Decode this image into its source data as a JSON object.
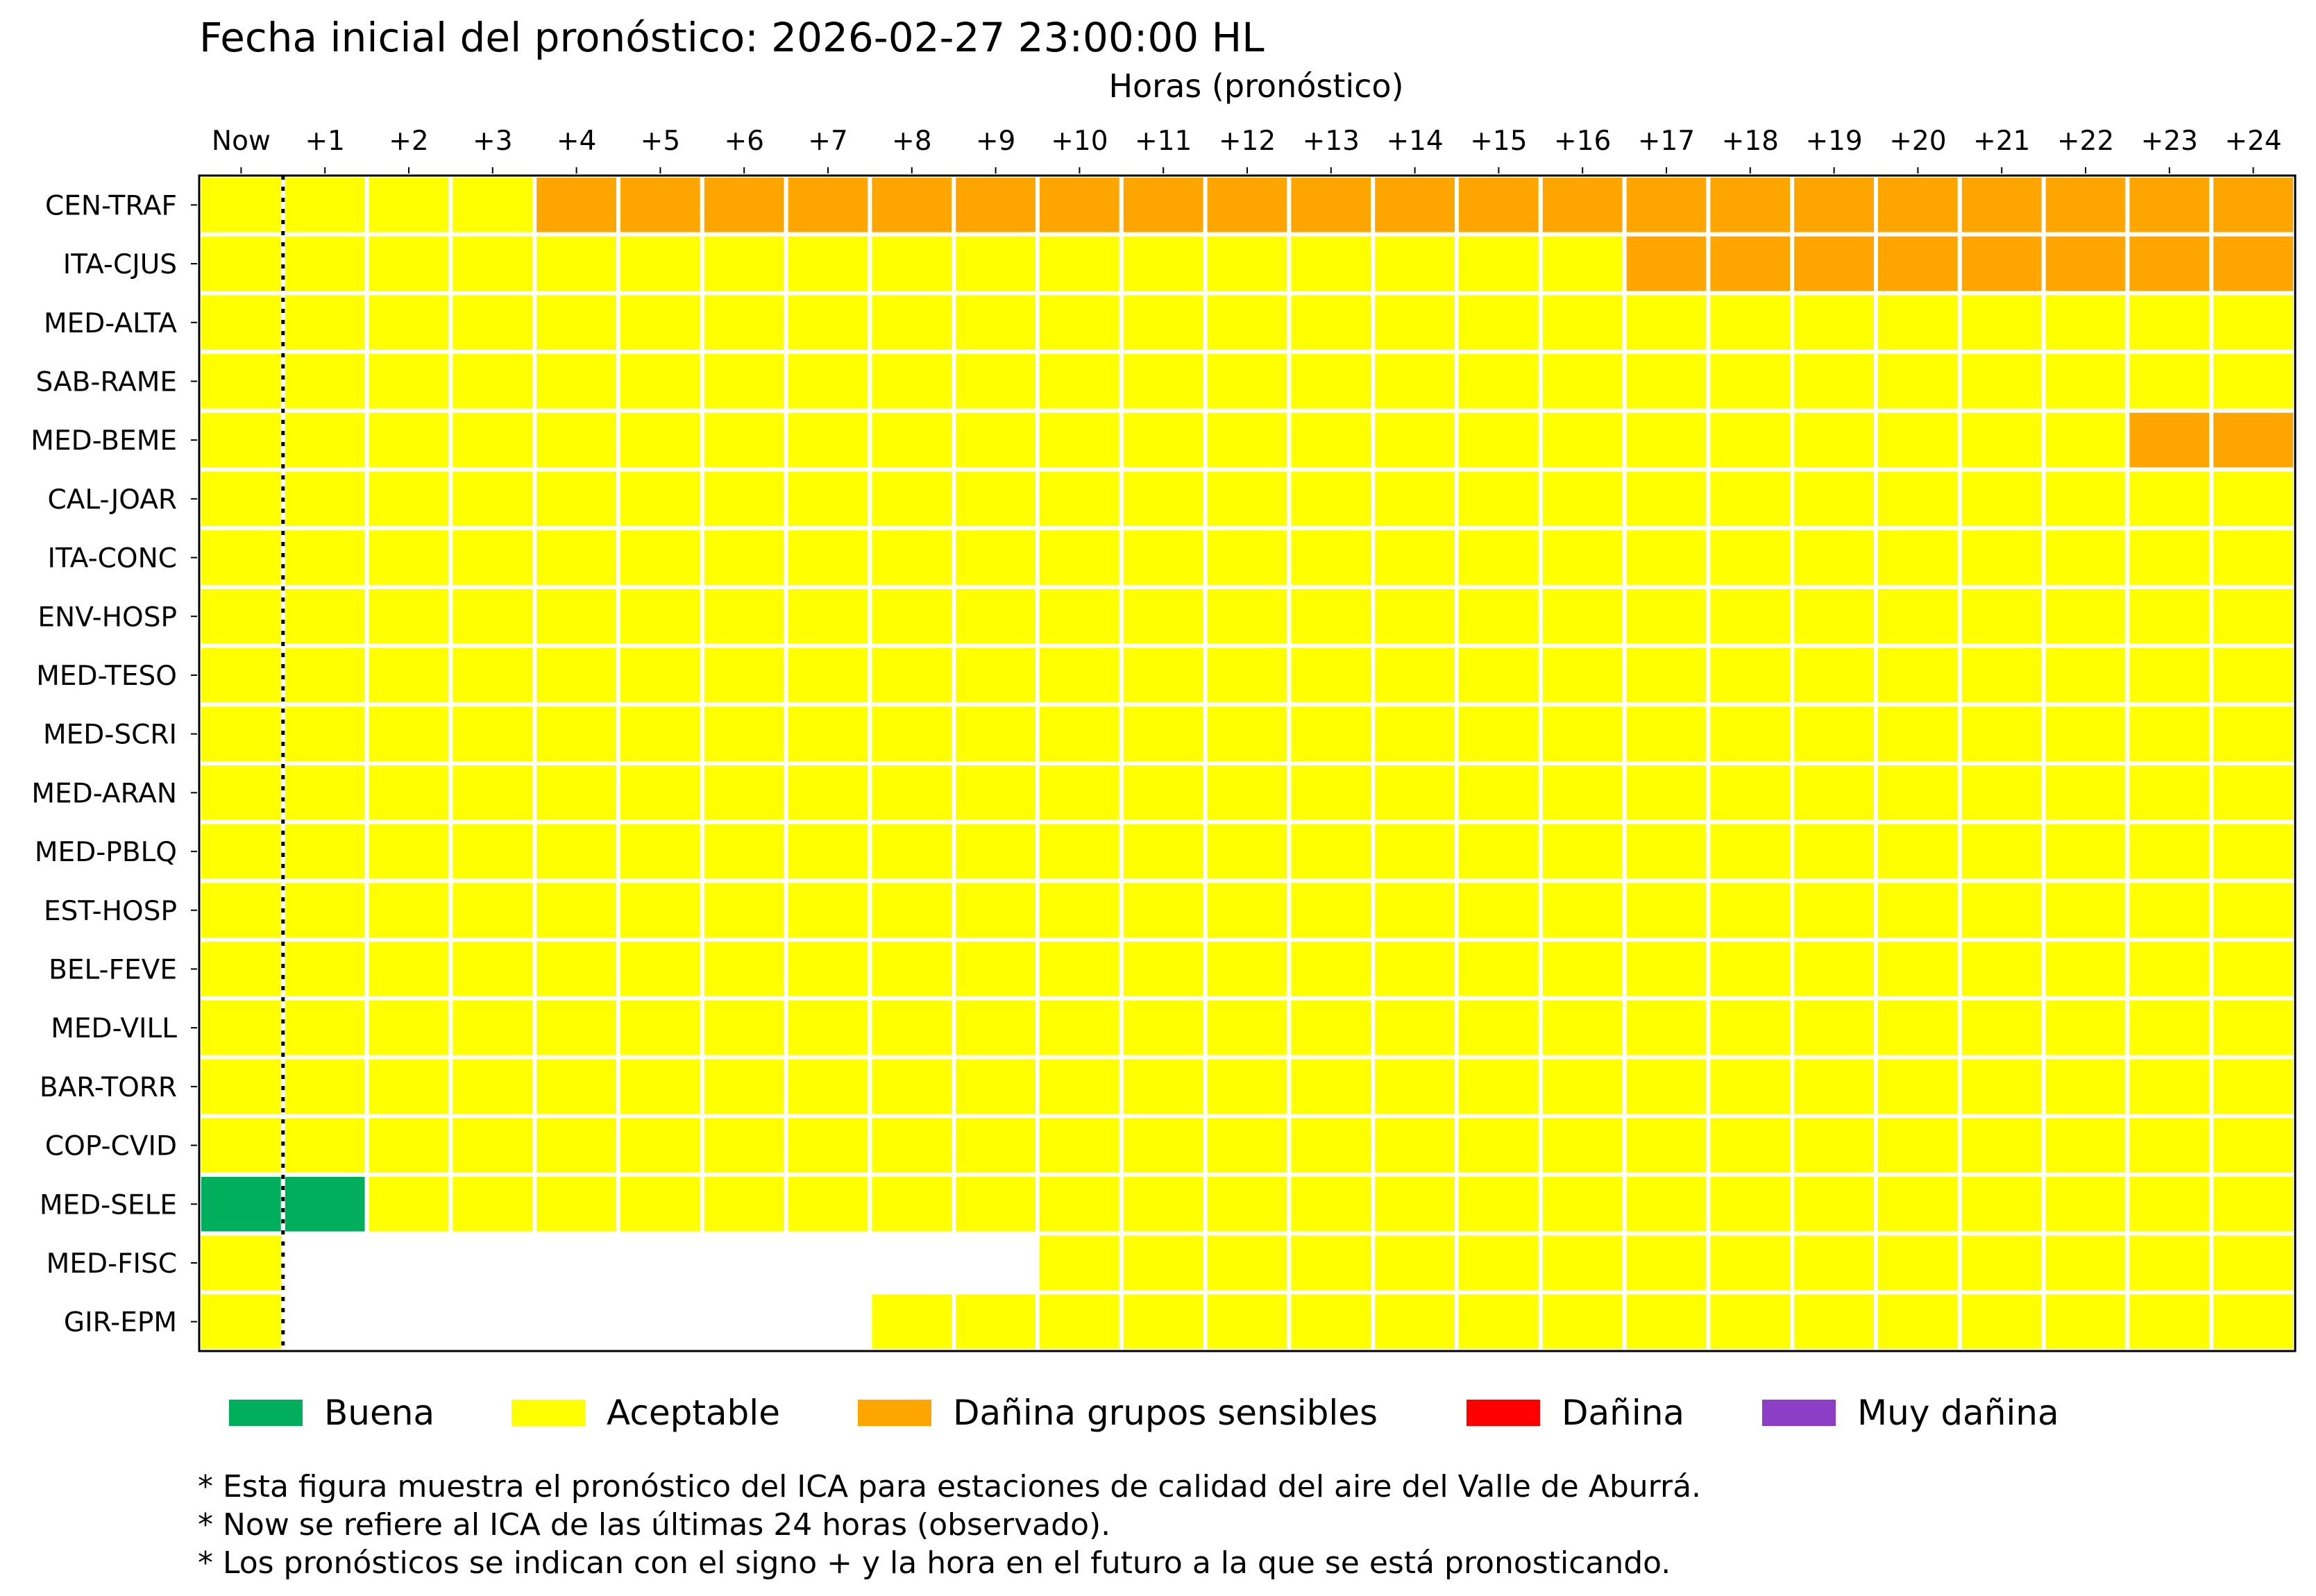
{
  "chart_data": {
    "type": "heatmap",
    "title": "Fecha inicial del pronóstico: 2026-02-27 23:00:00 HL",
    "xlabel": "Horas (pronóstico)",
    "ylabel": "",
    "columns": [
      "Now",
      "+1",
      "+2",
      "+3",
      "+4",
      "+5",
      "+6",
      "+7",
      "+8",
      "+9",
      "+10",
      "+11",
      "+12",
      "+13",
      "+14",
      "+15",
      "+16",
      "+17",
      "+18",
      "+19",
      "+20",
      "+21",
      "+22",
      "+23",
      "+24"
    ],
    "categories": [
      {
        "code": "B",
        "label": "Buena",
        "color": "#00ae5b"
      },
      {
        "code": "A",
        "label": "Aceptable",
        "color": "#ffff00"
      },
      {
        "code": "D",
        "label": "Dañina grupos sensibles",
        "color": "#ffa500"
      },
      {
        "code": "R",
        "label": "Dañina",
        "color": "#ff0000"
      },
      {
        "code": "M",
        "label": "Muy dañina",
        "color": "#8b3fc7"
      }
    ],
    "empty_color": "#ffffff",
    "rows": [
      {
        "station": "CEN-TRAF",
        "values": [
          "A",
          "A",
          "A",
          "A",
          "D",
          "D",
          "D",
          "D",
          "D",
          "D",
          "D",
          "D",
          "D",
          "D",
          "D",
          "D",
          "D",
          "D",
          "D",
          "D",
          "D",
          "D",
          "D",
          "D",
          "D"
        ]
      },
      {
        "station": "ITA-CJUS",
        "values": [
          "A",
          "A",
          "A",
          "A",
          "A",
          "A",
          "A",
          "A",
          "A",
          "A",
          "A",
          "A",
          "A",
          "A",
          "A",
          "A",
          "A",
          "D",
          "D",
          "D",
          "D",
          "D",
          "D",
          "D",
          "D"
        ]
      },
      {
        "station": "MED-ALTA",
        "values": [
          "A",
          "A",
          "A",
          "A",
          "A",
          "A",
          "A",
          "A",
          "A",
          "A",
          "A",
          "A",
          "A",
          "A",
          "A",
          "A",
          "A",
          "A",
          "A",
          "A",
          "A",
          "A",
          "A",
          "A",
          "A"
        ]
      },
      {
        "station": "SAB-RAME",
        "values": [
          "A",
          "A",
          "A",
          "A",
          "A",
          "A",
          "A",
          "A",
          "A",
          "A",
          "A",
          "A",
          "A",
          "A",
          "A",
          "A",
          "A",
          "A",
          "A",
          "A",
          "A",
          "A",
          "A",
          "A",
          "A"
        ]
      },
      {
        "station": "MED-BEME",
        "values": [
          "A",
          "A",
          "A",
          "A",
          "A",
          "A",
          "A",
          "A",
          "A",
          "A",
          "A",
          "A",
          "A",
          "A",
          "A",
          "A",
          "A",
          "A",
          "A",
          "A",
          "A",
          "A",
          "A",
          "D",
          "D"
        ]
      },
      {
        "station": "CAL-JOAR",
        "values": [
          "A",
          "A",
          "A",
          "A",
          "A",
          "A",
          "A",
          "A",
          "A",
          "A",
          "A",
          "A",
          "A",
          "A",
          "A",
          "A",
          "A",
          "A",
          "A",
          "A",
          "A",
          "A",
          "A",
          "A",
          "A"
        ]
      },
      {
        "station": "ITA-CONC",
        "values": [
          "A",
          "A",
          "A",
          "A",
          "A",
          "A",
          "A",
          "A",
          "A",
          "A",
          "A",
          "A",
          "A",
          "A",
          "A",
          "A",
          "A",
          "A",
          "A",
          "A",
          "A",
          "A",
          "A",
          "A",
          "A"
        ]
      },
      {
        "station": "ENV-HOSP",
        "values": [
          "A",
          "A",
          "A",
          "A",
          "A",
          "A",
          "A",
          "A",
          "A",
          "A",
          "A",
          "A",
          "A",
          "A",
          "A",
          "A",
          "A",
          "A",
          "A",
          "A",
          "A",
          "A",
          "A",
          "A",
          "A"
        ]
      },
      {
        "station": "MED-TESO",
        "values": [
          "A",
          "A",
          "A",
          "A",
          "A",
          "A",
          "A",
          "A",
          "A",
          "A",
          "A",
          "A",
          "A",
          "A",
          "A",
          "A",
          "A",
          "A",
          "A",
          "A",
          "A",
          "A",
          "A",
          "A",
          "A"
        ]
      },
      {
        "station": "MED-SCRI",
        "values": [
          "A",
          "A",
          "A",
          "A",
          "A",
          "A",
          "A",
          "A",
          "A",
          "A",
          "A",
          "A",
          "A",
          "A",
          "A",
          "A",
          "A",
          "A",
          "A",
          "A",
          "A",
          "A",
          "A",
          "A",
          "A"
        ]
      },
      {
        "station": "MED-ARAN",
        "values": [
          "A",
          "A",
          "A",
          "A",
          "A",
          "A",
          "A",
          "A",
          "A",
          "A",
          "A",
          "A",
          "A",
          "A",
          "A",
          "A",
          "A",
          "A",
          "A",
          "A",
          "A",
          "A",
          "A",
          "A",
          "A"
        ]
      },
      {
        "station": "MED-PBLQ",
        "values": [
          "A",
          "A",
          "A",
          "A",
          "A",
          "A",
          "A",
          "A",
          "A",
          "A",
          "A",
          "A",
          "A",
          "A",
          "A",
          "A",
          "A",
          "A",
          "A",
          "A",
          "A",
          "A",
          "A",
          "A",
          "A"
        ]
      },
      {
        "station": "EST-HOSP",
        "values": [
          "A",
          "A",
          "A",
          "A",
          "A",
          "A",
          "A",
          "A",
          "A",
          "A",
          "A",
          "A",
          "A",
          "A",
          "A",
          "A",
          "A",
          "A",
          "A",
          "A",
          "A",
          "A",
          "A",
          "A",
          "A"
        ]
      },
      {
        "station": "BEL-FEVE",
        "values": [
          "A",
          "A",
          "A",
          "A",
          "A",
          "A",
          "A",
          "A",
          "A",
          "A",
          "A",
          "A",
          "A",
          "A",
          "A",
          "A",
          "A",
          "A",
          "A",
          "A",
          "A",
          "A",
          "A",
          "A",
          "A"
        ]
      },
      {
        "station": "MED-VILL",
        "values": [
          "A",
          "A",
          "A",
          "A",
          "A",
          "A",
          "A",
          "A",
          "A",
          "A",
          "A",
          "A",
          "A",
          "A",
          "A",
          "A",
          "A",
          "A",
          "A",
          "A",
          "A",
          "A",
          "A",
          "A",
          "A"
        ]
      },
      {
        "station": "BAR-TORR",
        "values": [
          "A",
          "A",
          "A",
          "A",
          "A",
          "A",
          "A",
          "A",
          "A",
          "A",
          "A",
          "A",
          "A",
          "A",
          "A",
          "A",
          "A",
          "A",
          "A",
          "A",
          "A",
          "A",
          "A",
          "A",
          "A"
        ]
      },
      {
        "station": "COP-CVID",
        "values": [
          "A",
          "A",
          "A",
          "A",
          "A",
          "A",
          "A",
          "A",
          "A",
          "A",
          "A",
          "A",
          "A",
          "A",
          "A",
          "A",
          "A",
          "A",
          "A",
          "A",
          "A",
          "A",
          "A",
          "A",
          "A"
        ]
      },
      {
        "station": "MED-SELE",
        "values": [
          "B",
          "B",
          "A",
          "A",
          "A",
          "A",
          "A",
          "A",
          "A",
          "A",
          "A",
          "A",
          "A",
          "A",
          "A",
          "A",
          "A",
          "A",
          "A",
          "A",
          "A",
          "A",
          "A",
          "A",
          "A"
        ]
      },
      {
        "station": "MED-FISC",
        "values": [
          "A",
          null,
          null,
          null,
          null,
          null,
          null,
          null,
          null,
          null,
          "A",
          "A",
          "A",
          "A",
          "A",
          "A",
          "A",
          "A",
          "A",
          "A",
          "A",
          "A",
          "A",
          "A",
          "A"
        ]
      },
      {
        "station": "GIR-EPM",
        "values": [
          "A",
          null,
          null,
          null,
          null,
          null,
          null,
          null,
          "A",
          "A",
          "A",
          "A",
          "A",
          "A",
          "A",
          "A",
          "A",
          "A",
          "A",
          "A",
          "A",
          "A",
          "A",
          "A",
          "A"
        ]
      }
    ],
    "grid": true,
    "now_separator": "dotted line between Now and +1",
    "legend_position": "bottom"
  },
  "notes": [
    "* Esta figura muestra el pronóstico del ICA para estaciones de calidad del aire del Valle de Aburrá.",
    "* Now se refiere al ICA de las últimas 24 horas (observado).",
    "* Los pronósticos se indican con el signo + y la hora en el futuro a la que se está pronosticando."
  ]
}
